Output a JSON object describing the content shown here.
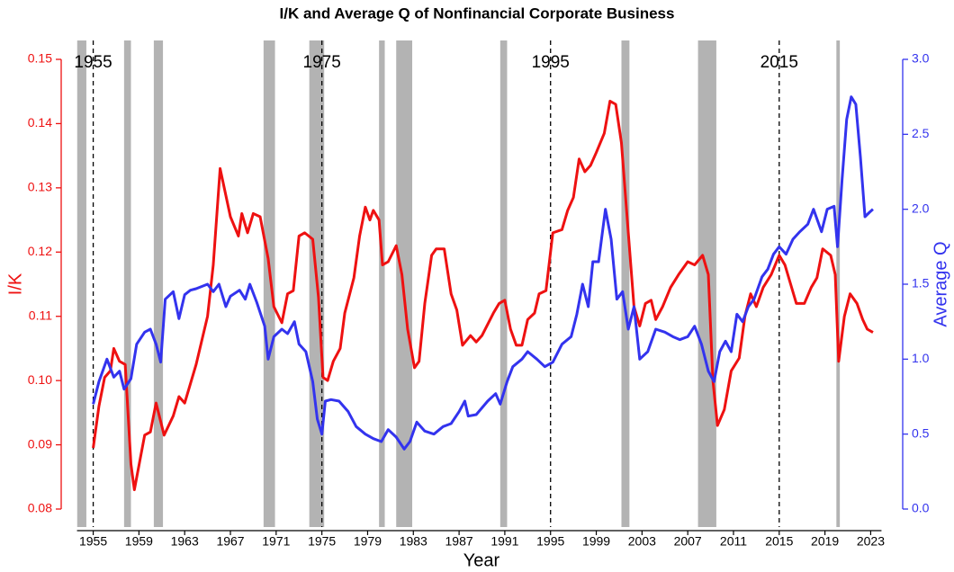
{
  "chart_data": {
    "type": "line",
    "title": "I/K and Average Q of Nonfinancial Corporate Business",
    "x_label": "Year",
    "y_label": "I/K",
    "y2_label": "Average Q",
    "xlim": [
      1952.2,
      2025.8
    ],
    "xticks": [
      1955,
      1959,
      1963,
      1967,
      1971,
      1975,
      1979,
      1983,
      1987,
      1991,
      1995,
      1999,
      2003,
      2007,
      2011,
      2015,
      2019,
      2023
    ],
    "ylim": [
      0.08,
      0.15
    ],
    "yticks": [
      0.08,
      0.09,
      {
        "value": 0.1,
        "label": "0.10"
      },
      0.11,
      0.12,
      0.13,
      0.14,
      0.15
    ],
    "y2lim": [
      0,
      3
    ],
    "y2ticks": [
      {
        "value": 0,
        "label": "0.0"
      },
      0.5,
      {
        "value": 1,
        "label": "1.0"
      },
      1.5,
      {
        "value": 2,
        "label": "2.0"
      },
      2.5,
      {
        "value": 3,
        "label": "3.0"
      }
    ],
    "y_color": "#ee1111",
    "y2_color": "#3333ee",
    "shade_color": "#b3b3b3",
    "shaded_periods": [
      [
        1953.6,
        1954.4
      ],
      [
        1957.7,
        1958.3
      ],
      [
        1960.3,
        1961.1
      ],
      [
        1969.9,
        1970.9
      ],
      [
        1973.9,
        1975.2
      ],
      [
        1980.0,
        1980.5
      ],
      [
        1981.5,
        1982.9
      ],
      [
        1990.6,
        1991.2
      ],
      [
        2001.2,
        2001.9
      ],
      [
        2007.9,
        2009.5
      ],
      [
        2020.0,
        2020.3
      ]
    ],
    "vlines": [
      {
        "value": 1955,
        "label": "1955"
      },
      {
        "value": 1975,
        "label": "1975"
      },
      {
        "value": 1995,
        "label": "1995"
      },
      {
        "value": 2015,
        "label": "2015"
      }
    ],
    "series": [
      {
        "color": "#ee1111",
        "axis": "y",
        "x": [
          1955,
          1955.5,
          1956,
          1956.5,
          1956.8,
          1957.3,
          1957.8,
          1958.3,
          1958.6,
          1959.5,
          1960,
          1960.5,
          1961.2,
          1962,
          1962.5,
          1963,
          1964,
          1965,
          1965.5,
          1966.1,
          1967,
          1967.7,
          1968,
          1968.5,
          1969,
          1969.6,
          1970.3,
          1970.8,
          1971.5,
          1972,
          1972.5,
          1973,
          1973.5,
          1974.2,
          1974.7,
          1975.1,
          1975.5,
          1976,
          1976.6,
          1977,
          1977.8,
          1978.3,
          1978.8,
          1979.2,
          1979.5,
          1980,
          1980.3,
          1980.8,
          1981.5,
          1982,
          1982.5,
          1983.1,
          1983.5,
          1984,
          1984.6,
          1985,
          1985.7,
          1986.3,
          1986.8,
          1987.3,
          1988,
          1988.5,
          1989,
          1990,
          1990.5,
          1991,
          1991.5,
          1992,
          1992.5,
          1993,
          1993.6,
          1994,
          1994.6,
          1995.2,
          1996,
          1996.5,
          1997,
          1997.5,
          1998,
          1998.5,
          1999,
          1999.7,
          2000.2,
          2000.7,
          2001.2,
          2001.8,
          2002.3,
          2002.8,
          2003.3,
          2003.8,
          2004.2,
          2004.8,
          2005.5,
          2006.2,
          2007,
          2007.6,
          2008.3,
          2008.8,
          2009.2,
          2009.6,
          2010.2,
          2010.8,
          2011.5,
          2012,
          2012.5,
          2013,
          2013.6,
          2014.3,
          2015,
          2015.5,
          2016,
          2016.5,
          2017.2,
          2017.8,
          2018.3,
          2018.8,
          2019.5,
          2019.9,
          2020.2,
          2020.7,
          2021.2,
          2021.8,
          2022.3,
          2022.7,
          2023.2
        ],
        "values": [
          0.0895,
          0.096,
          0.1005,
          0.1015,
          0.105,
          0.103,
          0.1025,
          0.087,
          0.083,
          0.0915,
          0.092,
          0.0965,
          0.0915,
          0.0945,
          0.0975,
          0.0965,
          0.1025,
          0.11,
          0.118,
          0.133,
          0.1255,
          0.1225,
          0.126,
          0.123,
          0.126,
          0.1255,
          0.119,
          0.1115,
          0.109,
          0.1135,
          0.114,
          0.1225,
          0.123,
          0.122,
          0.113,
          0.1005,
          0.1,
          0.103,
          0.105,
          0.1105,
          0.116,
          0.1225,
          0.127,
          0.125,
          0.1265,
          0.125,
          0.118,
          0.1185,
          0.121,
          0.1165,
          0.108,
          0.102,
          0.103,
          0.112,
          0.1195,
          0.1205,
          0.1205,
          0.1135,
          0.111,
          0.1055,
          0.107,
          0.106,
          0.107,
          0.1105,
          0.112,
          0.1125,
          0.108,
          0.1055,
          0.1055,
          0.1095,
          0.1105,
          0.1135,
          0.114,
          0.123,
          0.1235,
          0.1265,
          0.1285,
          0.1345,
          0.1325,
          0.1335,
          0.1355,
          0.1385,
          0.1435,
          0.143,
          0.137,
          0.123,
          0.1115,
          0.1085,
          0.112,
          0.1125,
          0.1095,
          0.1115,
          0.1145,
          0.1165,
          0.1185,
          0.118,
          0.1195,
          0.1165,
          0.1,
          0.093,
          0.0955,
          0.1015,
          0.1035,
          0.11,
          0.1135,
          0.1115,
          0.1145,
          0.1165,
          0.1195,
          0.118,
          0.115,
          0.112,
          0.112,
          0.1145,
          0.116,
          0.1205,
          0.1195,
          0.1165,
          0.103,
          0.11,
          0.1135,
          0.112,
          0.1095,
          0.108,
          0.1075
        ]
      },
      {
        "color": "#3333ee",
        "axis": "y2",
        "x": [
          1955,
          1955.5,
          1956.2,
          1956.8,
          1957.3,
          1957.7,
          1958.3,
          1958.8,
          1959.5,
          1960,
          1960.5,
          1960.9,
          1961.3,
          1962,
          1962.5,
          1963,
          1963.5,
          1964,
          1965,
          1965.5,
          1966,
          1966.6,
          1967,
          1967.8,
          1968.3,
          1968.7,
          1969.3,
          1970,
          1970.3,
          1970.8,
          1971.5,
          1972,
          1972.6,
          1973,
          1973.6,
          1974.2,
          1974.6,
          1975,
          1975.3,
          1975.8,
          1976.5,
          1977.3,
          1978,
          1978.8,
          1979.5,
          1980.2,
          1980.8,
          1981.5,
          1982.2,
          1982.7,
          1983.3,
          1984,
          1984.8,
          1985.6,
          1986.3,
          1987,
          1987.5,
          1987.8,
          1988.5,
          1989.5,
          1990.2,
          1990.6,
          1991.2,
          1991.7,
          1992.5,
          1993,
          1993.8,
          1994.5,
          1995.2,
          1996,
          1996.8,
          1997.3,
          1997.8,
          1998.3,
          1998.7,
          1999.2,
          1999.8,
          2000.3,
          2000.8,
          2001.3,
          2001.8,
          2002.3,
          2002.8,
          2003.5,
          2004.2,
          2005,
          2005.7,
          2006.3,
          2007,
          2007.6,
          2008.2,
          2008.8,
          2009.3,
          2009.8,
          2010.3,
          2010.8,
          2011.3,
          2011.8,
          2012.3,
          2012.8,
          2013.5,
          2014,
          2014.5,
          2015,
          2015.6,
          2016.2,
          2016.8,
          2017.5,
          2018,
          2018.7,
          2019.2,
          2019.8,
          2020.1,
          2020.5,
          2020.9,
          2021.3,
          2021.7,
          2022.1,
          2022.5,
          2022.9,
          2023.2
        ],
        "values": [
          0.7,
          0.85,
          1.0,
          0.88,
          0.92,
          0.8,
          0.87,
          1.1,
          1.18,
          1.2,
          1.1,
          0.98,
          1.4,
          1.45,
          1.27,
          1.43,
          1.46,
          1.47,
          1.5,
          1.45,
          1.5,
          1.35,
          1.42,
          1.46,
          1.4,
          1.5,
          1.38,
          1.22,
          1.0,
          1.15,
          1.2,
          1.17,
          1.25,
          1.1,
          1.05,
          0.85,
          0.6,
          0.5,
          0.72,
          0.73,
          0.72,
          0.65,
          0.55,
          0.5,
          0.47,
          0.45,
          0.53,
          0.48,
          0.4,
          0.45,
          0.58,
          0.52,
          0.5,
          0.55,
          0.57,
          0.65,
          0.72,
          0.62,
          0.63,
          0.72,
          0.77,
          0.7,
          0.85,
          0.95,
          1.0,
          1.05,
          1.0,
          0.95,
          0.98,
          1.1,
          1.15,
          1.3,
          1.5,
          1.35,
          1.65,
          1.65,
          2.0,
          1.8,
          1.4,
          1.45,
          1.2,
          1.35,
          1.0,
          1.05,
          1.2,
          1.18,
          1.15,
          1.13,
          1.15,
          1.22,
          1.1,
          0.92,
          0.85,
          1.05,
          1.12,
          1.05,
          1.3,
          1.25,
          1.35,
          1.4,
          1.55,
          1.6,
          1.7,
          1.75,
          1.7,
          1.8,
          1.85,
          1.9,
          2.0,
          1.85,
          2.0,
          2.02,
          1.75,
          2.2,
          2.6,
          2.75,
          2.7,
          2.35,
          1.95,
          1.98,
          2.0
        ]
      }
    ]
  }
}
